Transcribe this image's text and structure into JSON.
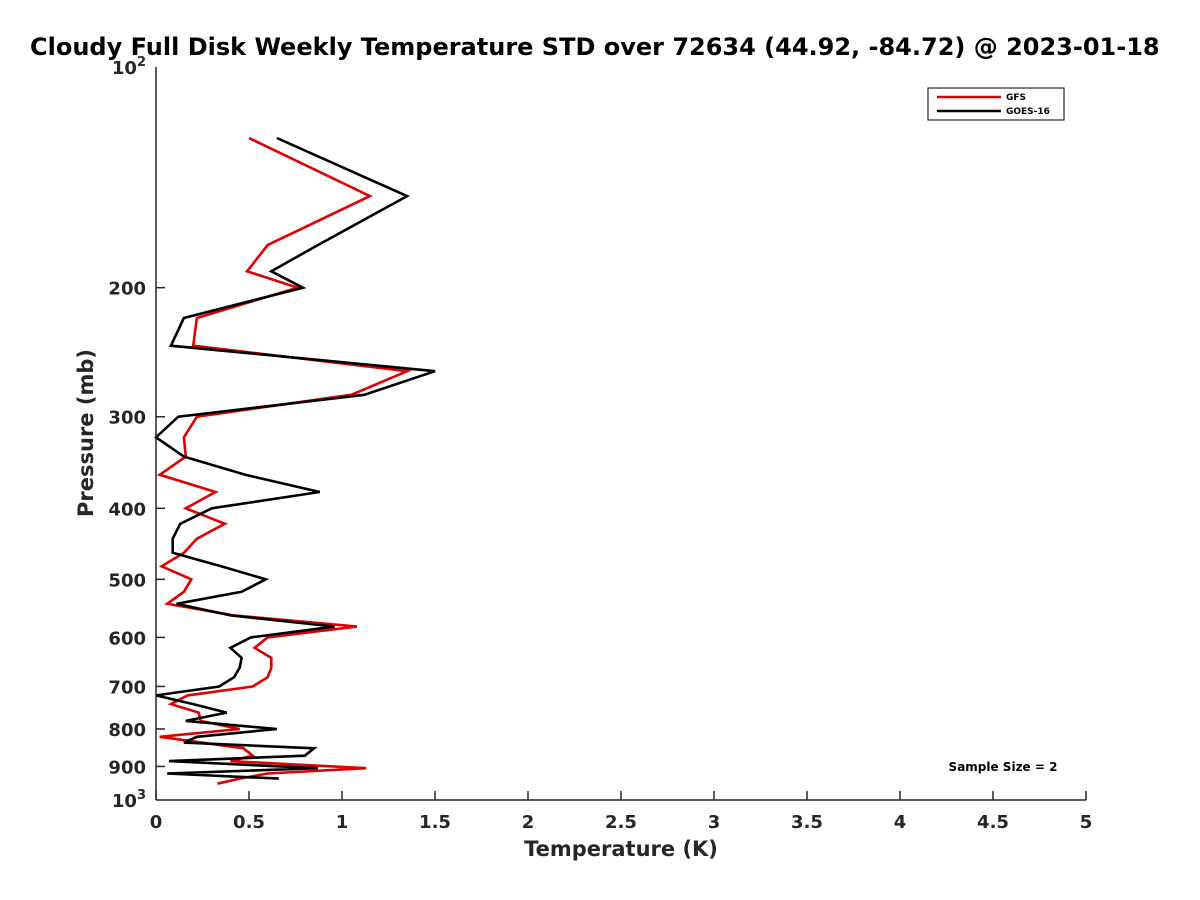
{
  "chart_data": {
    "type": "line",
    "title": "Cloudy Full Disk Weekly Temperature STD over 72634 (44.92, -84.72) @ 2023-01-18",
    "xlabel": "Temperature (K)",
    "ylabel": "Pressure (mb)",
    "xlim": [
      0,
      5
    ],
    "ylim": [
      100,
      1000
    ],
    "y_scale": "log",
    "y_reversed": true,
    "x_ticks": [
      "0",
      "0.5",
      "1",
      "1.5",
      "2",
      "2.5",
      "3",
      "3.5",
      "4",
      "4.5",
      "5"
    ],
    "x_tick_values": [
      0,
      0.5,
      1,
      1.5,
      2,
      2.5,
      3,
      3.5,
      4,
      4.5,
      5
    ],
    "y_tick_values": [
      200,
      300,
      400,
      500,
      600,
      700,
      800,
      900
    ],
    "y_tick_labels": [
      "200",
      "300",
      "400",
      "500",
      "600",
      "700",
      "800",
      "900"
    ],
    "y_end_labels": [
      {
        "value": 100,
        "base": "10",
        "exp": "2"
      },
      {
        "value": 1000,
        "base": "10",
        "exp": "3"
      }
    ],
    "grid": false,
    "legend_position": "top-right",
    "annotation": "Sample Size = 2",
    "series": [
      {
        "name": "GFS",
        "color": "#e00000",
        "points": [
          [
            0.5,
            125
          ],
          [
            1.15,
            150
          ],
          [
            0.6,
            175
          ],
          [
            0.49,
            190
          ],
          [
            0.76,
            200
          ],
          [
            0.22,
            220
          ],
          [
            0.2,
            240
          ],
          [
            1.35,
            260
          ],
          [
            1.05,
            280
          ],
          [
            0.22,
            300
          ],
          [
            0.15,
            320
          ],
          [
            0.16,
            340
          ],
          [
            0.02,
            360
          ],
          [
            0.32,
            380
          ],
          [
            0.16,
            400
          ],
          [
            0.37,
            420
          ],
          [
            0.22,
            440
          ],
          [
            0.15,
            460
          ],
          [
            0.03,
            480
          ],
          [
            0.19,
            500
          ],
          [
            0.15,
            520
          ],
          [
            0.06,
            540
          ],
          [
            0.42,
            560
          ],
          [
            1.08,
            580
          ],
          [
            0.6,
            600
          ],
          [
            0.53,
            620
          ],
          [
            0.62,
            640
          ],
          [
            0.62,
            660
          ],
          [
            0.6,
            680
          ],
          [
            0.52,
            700
          ],
          [
            0.17,
            720
          ],
          [
            0.08,
            740
          ],
          [
            0.23,
            760
          ],
          [
            0.24,
            780
          ],
          [
            0.45,
            800
          ],
          [
            0.02,
            820
          ],
          [
            0.47,
            850
          ],
          [
            0.52,
            870
          ],
          [
            0.4,
            885
          ],
          [
            1.13,
            905
          ],
          [
            0.6,
            920
          ],
          [
            0.45,
            935
          ],
          [
            0.33,
            950
          ]
        ]
      },
      {
        "name": "GOES-16",
        "color": "#000000",
        "points": [
          [
            0.65,
            125
          ],
          [
            1.35,
            150
          ],
          [
            0.87,
            175
          ],
          [
            0.62,
            190
          ],
          [
            0.79,
            200
          ],
          [
            0.15,
            220
          ],
          [
            0.08,
            240
          ],
          [
            1.5,
            260
          ],
          [
            1.12,
            280
          ],
          [
            0.12,
            300
          ],
          [
            0.0,
            320
          ],
          [
            0.15,
            340
          ],
          [
            0.48,
            360
          ],
          [
            0.88,
            380
          ],
          [
            0.3,
            400
          ],
          [
            0.13,
            420
          ],
          [
            0.09,
            440
          ],
          [
            0.09,
            460
          ],
          [
            0.35,
            480
          ],
          [
            0.59,
            500
          ],
          [
            0.46,
            520
          ],
          [
            0.11,
            540
          ],
          [
            0.4,
            560
          ],
          [
            0.96,
            580
          ],
          [
            0.51,
            600
          ],
          [
            0.4,
            620
          ],
          [
            0.46,
            640
          ],
          [
            0.45,
            660
          ],
          [
            0.42,
            680
          ],
          [
            0.34,
            700
          ],
          [
            0.0,
            720
          ],
          [
            0.2,
            740
          ],
          [
            0.38,
            760
          ],
          [
            0.16,
            780
          ],
          [
            0.65,
            800
          ],
          [
            0.22,
            820
          ],
          [
            0.15,
            835
          ],
          [
            0.85,
            850
          ],
          [
            0.8,
            870
          ],
          [
            0.07,
            885
          ],
          [
            0.87,
            905
          ],
          [
            0.06,
            920
          ],
          [
            0.66,
            935
          ]
        ]
      }
    ]
  }
}
